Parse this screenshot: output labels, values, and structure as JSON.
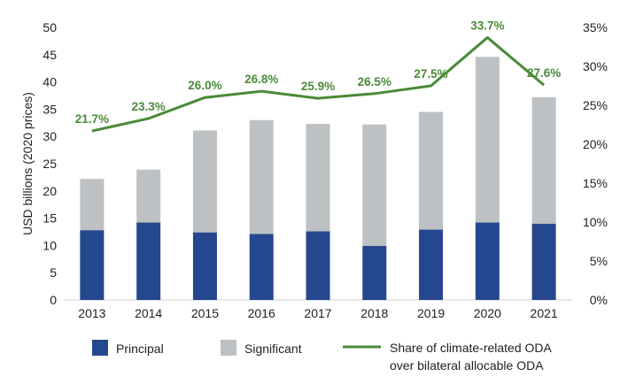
{
  "chart_data": {
    "type": "bar",
    "stacked": true,
    "categories": [
      "2013",
      "2014",
      "2015",
      "2016",
      "2017",
      "2018",
      "2019",
      "2020",
      "2021"
    ],
    "series": [
      {
        "name": "Principal",
        "type": "bar",
        "axis": "left",
        "color": "#24478d",
        "values": [
          12.8,
          14.2,
          12.4,
          12.1,
          12.6,
          9.9,
          12.9,
          14.2,
          14.0
        ]
      },
      {
        "name": "Significant",
        "type": "bar",
        "axis": "left",
        "color": "#bdc1c3",
        "values": [
          9.4,
          9.7,
          18.7,
          20.9,
          19.7,
          22.3,
          21.6,
          30.4,
          23.2
        ]
      },
      {
        "name": "Share of climate-related ODA over bilateral allocable ODA",
        "type": "line",
        "axis": "right",
        "color": "#4a8a38",
        "values": [
          21.7,
          23.3,
          26.0,
          26.8,
          25.9,
          26.5,
          27.5,
          33.7,
          27.6
        ],
        "labels": [
          "21.7%",
          "23.3%",
          "26.0%",
          "26.8%",
          "25.9%",
          "26.5%",
          "27.5%",
          "33.7%",
          "27.6%"
        ]
      }
    ],
    "ylabel": "USD billions  (2020 prices)",
    "ylim": [
      0,
      50
    ],
    "yticks": [
      "0",
      "5",
      "10",
      "15",
      "20",
      "25",
      "30",
      "35",
      "40",
      "45",
      "50"
    ],
    "y2lim": [
      0,
      35
    ],
    "y2ticks": [
      "0%",
      "5%",
      "10%",
      "15%",
      "20%",
      "25%",
      "30%",
      "35%"
    ],
    "legend": {
      "position": "bottom",
      "items": [
        {
          "label": "Principal",
          "kind": "box",
          "color": "#24478d"
        },
        {
          "label": "Significant",
          "kind": "box",
          "color": "#bdc1c3"
        },
        {
          "label": "Share of climate-related ODA",
          "label2": "over bilateral allocable ODA",
          "kind": "line",
          "color": "#4a8a38"
        }
      ]
    }
  }
}
